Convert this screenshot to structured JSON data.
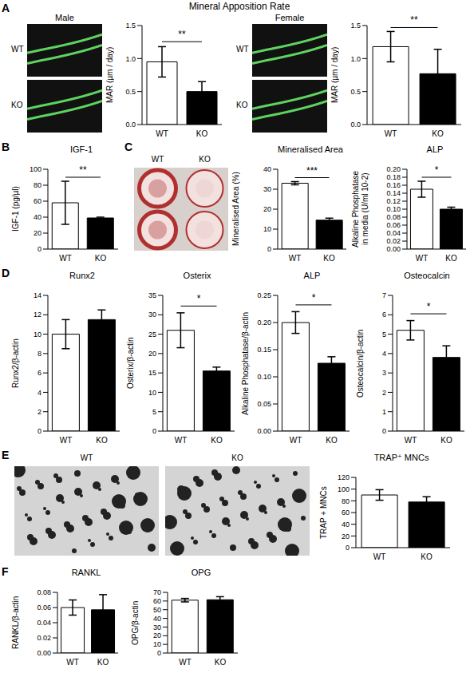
{
  "title": "Mineral Apposition Rate",
  "panels": [
    "A",
    "B",
    "C",
    "D",
    "E",
    "F"
  ],
  "images": [
    {
      "title": "Male",
      "labels": [
        "WT",
        "KO"
      ]
    },
    {
      "title": "Female",
      "labels": [
        "WT",
        "KO"
      ]
    },
    {
      "labels": [
        "WT",
        "KO"
      ]
    },
    {
      "labels": [
        "WT",
        "KO"
      ]
    }
  ],
  "chart_data": [
    {
      "type": "bar",
      "ylabel": "MAR (µm / day)",
      "categories": [
        "WT",
        "KO"
      ],
      "values": [
        0.95,
        0.5
      ],
      "errors": [
        0.23,
        0.15
      ],
      "colors": [
        "#ffffff",
        "#000000"
      ],
      "ylim": [
        0,
        1.5
      ],
      "yticks": [
        {
          "value": 0,
          "label": "0.0"
        },
        0.5,
        {
          "value": 1,
          "label": "1.0"
        },
        1.5
      ],
      "annotation": "**"
    },
    {
      "type": "bar",
      "ylabel": "MAR (µm / day)",
      "categories": [
        "WT",
        "KO"
      ],
      "values": [
        1.18,
        0.77
      ],
      "errors": [
        0.23,
        0.37
      ],
      "colors": [
        "#ffffff",
        "#000000"
      ],
      "ylim": [
        0,
        1.5
      ],
      "yticks": [
        {
          "value": 0,
          "label": "0.0"
        },
        0.5,
        {
          "value": 1,
          "label": "1.0"
        },
        1.5
      ],
      "annotation": "**"
    },
    {
      "type": "bar",
      "title": "IGF-1",
      "ylabel": "IGF-1 (pg/µl)",
      "categories": [
        "WT",
        "KO"
      ],
      "values": [
        58,
        39
      ],
      "errors": [
        27,
        1
      ],
      "colors": [
        "#ffffff",
        "#000000"
      ],
      "ylim": [
        0,
        100
      ],
      "yticks": [
        0,
        20,
        40,
        60,
        80,
        100
      ],
      "annotation": "**"
    },
    {
      "type": "bar",
      "title": "Mineralised Area",
      "ylabel": "Mineralised Area (%)",
      "categories": [
        "WT",
        "KO"
      ],
      "values": [
        33,
        14.5
      ],
      "errors": [
        0.8,
        1
      ],
      "colors": [
        "#ffffff",
        "#000000"
      ],
      "ylim": [
        0,
        40
      ],
      "yticks": [
        0,
        10,
        20,
        30,
        40
      ],
      "annotation": "***"
    },
    {
      "type": "bar",
      "title": "ALP",
      "ylabel": "Alkaline Phosphatase in media (U/ml 10-2)",
      "categories": [
        "WT",
        "KO"
      ],
      "values": [
        0.15,
        0.1
      ],
      "errors": [
        0.02,
        0.005
      ],
      "colors": [
        "#ffffff",
        "#000000"
      ],
      "ylim": [
        0,
        0.2
      ],
      "yticks": [
        {
          "value": 0,
          "label": "0.00"
        },
        0.02,
        0.04,
        0.06,
        0.08,
        {
          "value": 0.1,
          "label": "0.10"
        },
        0.12,
        0.14,
        0.16,
        0.18,
        {
          "value": 0.2,
          "label": "0.20"
        }
      ],
      "annotation": "*"
    },
    {
      "type": "bar",
      "title": "Runx2",
      "ylabel": "Runx2/β-actin",
      "categories": [
        "WT",
        "KO"
      ],
      "values": [
        10,
        11.5
      ],
      "errors": [
        1.5,
        1
      ],
      "colors": [
        "#ffffff",
        "#000000"
      ],
      "ylim": [
        0,
        14
      ],
      "yticks": [
        0,
        2,
        4,
        6,
        8,
        10,
        12,
        14
      ]
    },
    {
      "type": "bar",
      "title": "Osterix",
      "ylabel": "Osterix/β-actin",
      "categories": [
        "WT",
        "KO"
      ],
      "values": [
        26,
        15.5
      ],
      "errors": [
        4.5,
        1
      ],
      "colors": [
        "#ffffff",
        "#000000"
      ],
      "ylim": [
        0,
        35
      ],
      "yticks": [
        0,
        5,
        10,
        15,
        20,
        25,
        30,
        35
      ],
      "annotation": "*"
    },
    {
      "type": "bar",
      "title": "ALP",
      "ylabel": "Alkaline Phosphatase/β-actin",
      "categories": [
        "WT",
        "KO"
      ],
      "values": [
        0.2,
        0.125
      ],
      "errors": [
        0.02,
        0.012
      ],
      "colors": [
        "#ffffff",
        "#000000"
      ],
      "ylim": [
        0,
        0.25
      ],
      "yticks": [
        {
          "value": 0,
          "label": "0.00"
        },
        0.05,
        {
          "value": 0.1,
          "label": "0.10"
        },
        0.15,
        {
          "value": 0.2,
          "label": "0.20"
        },
        0.25
      ],
      "annotation": "*"
    },
    {
      "type": "bar",
      "title": "Osteocalcin",
      "ylabel": "Osteocalcin/β-actin",
      "categories": [
        "WT",
        "KO"
      ],
      "values": [
        5.2,
        3.8
      ],
      "errors": [
        0.5,
        0.6
      ],
      "colors": [
        "#ffffff",
        "#000000"
      ],
      "ylim": [
        0,
        7
      ],
      "yticks": [
        0,
        1,
        2,
        3,
        4,
        5,
        6,
        7
      ],
      "annotation": "*"
    },
    {
      "type": "bar",
      "title": "TRAP⁺ MNCs",
      "ylabel": "TRAP + MNCs",
      "categories": [
        "WT",
        "KO"
      ],
      "values": [
        90,
        78
      ],
      "errors": [
        9,
        9
      ],
      "colors": [
        "#ffffff",
        "#000000"
      ],
      "ylim": [
        0,
        120
      ],
      "yticks": [
        0,
        20,
        40,
        60,
        80,
        100,
        120
      ]
    },
    {
      "type": "bar",
      "title": "RANKL",
      "ylabel": "RANKL/β-actin",
      "categories": [
        "WT",
        "KO"
      ],
      "values": [
        0.06,
        0.057
      ],
      "errors": [
        0.01,
        0.02
      ],
      "colors": [
        "#ffffff",
        "#000000"
      ],
      "ylim": [
        0,
        0.08
      ],
      "yticks": [
        {
          "value": 0,
          "label": "0.00"
        },
        0.02,
        0.04,
        0.06,
        0.08
      ]
    },
    {
      "type": "bar",
      "title": "OPG",
      "ylabel": "OPG/β-actin",
      "categories": [
        "WT",
        "KO"
      ],
      "values": [
        61,
        61.5
      ],
      "errors": [
        2,
        3.5
      ],
      "colors": [
        "#ffffff",
        "#000000"
      ],
      "ylim": [
        0,
        70
      ],
      "yticks": [
        0,
        10,
        20,
        30,
        40,
        50,
        60,
        70
      ]
    }
  ]
}
